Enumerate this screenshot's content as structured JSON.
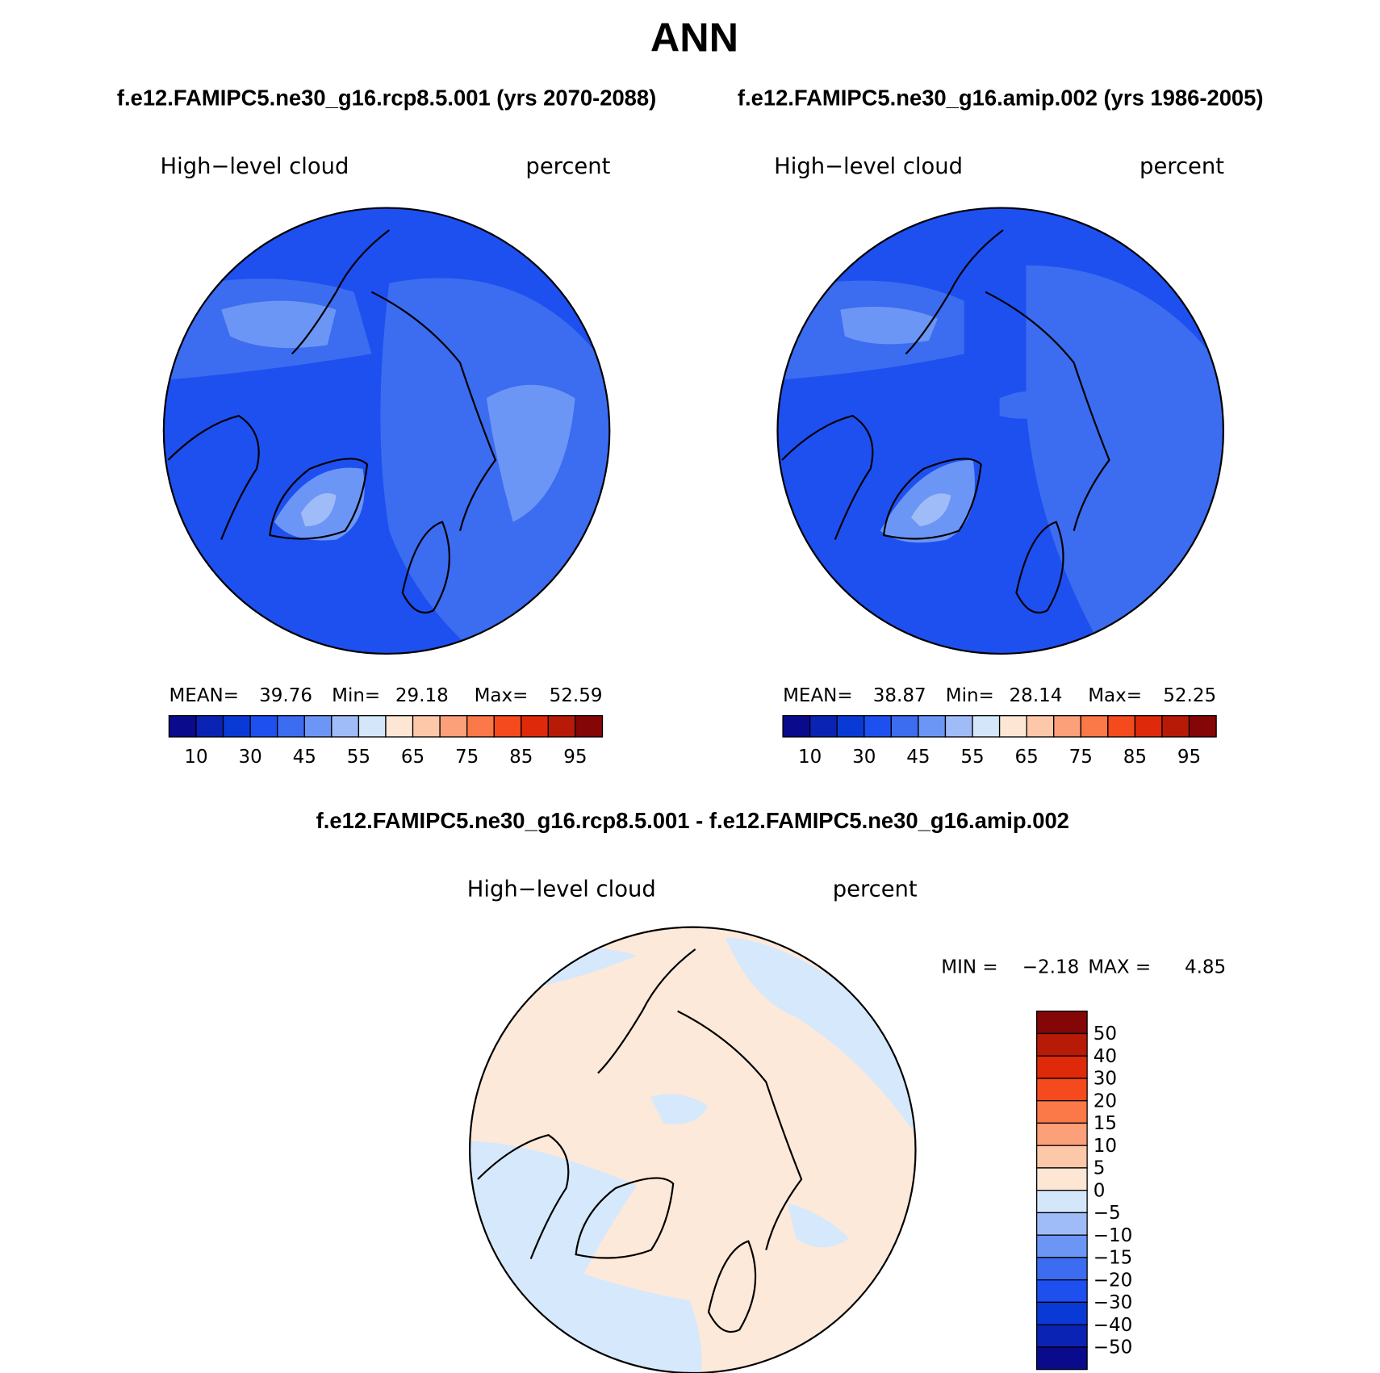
{
  "title": "ANN",
  "header": {
    "left": "f.e12.FAMIPC5.ne30_g16.rcp8.5.001 (yrs 2070-2088)",
    "right": "f.e12.FAMIPC5.ne30_g16.amip.002 (yrs 1986-2005)"
  },
  "panels": [
    {
      "variable": "High−level cloud",
      "units": "percent",
      "stats": {
        "mean_label": "MEAN=",
        "mean": "39.76",
        "min_label": "Min=",
        "min": "29.18",
        "max_label": "Max=",
        "max": "52.59"
      }
    },
    {
      "variable": "High−level cloud",
      "units": "percent",
      "stats": {
        "mean_label": "MEAN=",
        "mean": "38.87",
        "min_label": "Min=",
        "min": "28.14",
        "max_label": "Max=",
        "max": "52.25"
      }
    }
  ],
  "colorbar": {
    "colors": [
      "#0a0a8c",
      "#0a23b4",
      "#0a3ad6",
      "#1e50f0",
      "#3c6cf0",
      "#6c96f5",
      "#a0bcf8",
      "#d4e6fa",
      "#fde6d4",
      "#fdc8aa",
      "#fca07a",
      "#fb7848",
      "#f44a1e",
      "#de2a0a",
      "#b81a08",
      "#850606"
    ],
    "labels": [
      "10",
      "30",
      "45",
      "55",
      "65",
      "75",
      "85",
      "95"
    ]
  },
  "difference": {
    "title": "f.e12.FAMIPC5.ne30_g16.rcp8.5.001 - f.e12.FAMIPC5.ne30_g16.amip.002",
    "variable": "High−level cloud",
    "units": "percent",
    "stats": {
      "min_label": "MIN =",
      "min": "−2.18",
      "max_label": "MAX =",
      "max": "4.85"
    },
    "colorbar": {
      "colors": [
        "#850606",
        "#b81a08",
        "#de2a0a",
        "#f44a1e",
        "#fb7848",
        "#fca07a",
        "#fdc8aa",
        "#fde6d4",
        "#d4e6fa",
        "#a0bcf8",
        "#6c96f5",
        "#3c6cf0",
        "#1e50f0",
        "#0a3ad6",
        "#0a23b4",
        "#0a0a8c"
      ],
      "labels": [
        "50",
        "40",
        "30",
        "20",
        "15",
        "10",
        "5",
        "0",
        "−5",
        "−10",
        "−15",
        "−20",
        "−30",
        "−40",
        "−50"
      ]
    }
  }
}
